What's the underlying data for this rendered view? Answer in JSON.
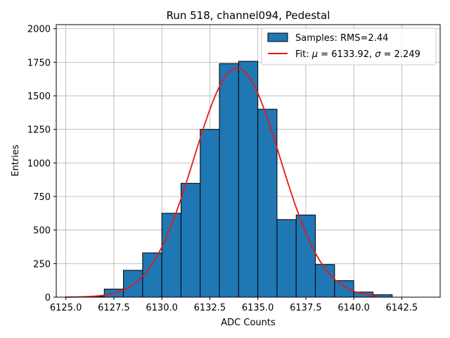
{
  "chart_data": {
    "type": "bar",
    "title": "Run 518, channel094, Pedestal",
    "xlabel": "ADC Counts",
    "ylabel": "Entries",
    "xlim": [
      6124.5,
      6144.5
    ],
    "ylim": [
      0,
      2030
    ],
    "grid": true,
    "legend_position": "top-right",
    "bin_width": 1,
    "bins": [
      {
        "left": 6125,
        "value": 2
      },
      {
        "left": 6126,
        "value": 5
      },
      {
        "left": 6127,
        "value": 60
      },
      {
        "left": 6128,
        "value": 200
      },
      {
        "left": 6129,
        "value": 330
      },
      {
        "left": 6130,
        "value": 625
      },
      {
        "left": 6131,
        "value": 848
      },
      {
        "left": 6132,
        "value": 1250
      },
      {
        "left": 6133,
        "value": 1740
      },
      {
        "left": 6134,
        "value": 1757
      },
      {
        "left": 6135,
        "value": 1400
      },
      {
        "left": 6136,
        "value": 578
      },
      {
        "left": 6137,
        "value": 612
      },
      {
        "left": 6138,
        "value": 243
      },
      {
        "left": 6139,
        "value": 123
      },
      {
        "left": 6140,
        "value": 38
      },
      {
        "left": 6141,
        "value": 18
      }
    ],
    "fit": {
      "mu": 6133.92,
      "sigma": 2.249,
      "amplitude": 1705,
      "x_range": [
        6125,
        6141.2
      ]
    },
    "x_ticks": [
      "6125.0",
      "6127.5",
      "6130.0",
      "6132.5",
      "6135.0",
      "6137.5",
      "6140.0",
      "6142.5"
    ],
    "y_ticks": [
      "0",
      "250",
      "500",
      "750",
      "1000",
      "1250",
      "1500",
      "1750",
      "2000"
    ],
    "legend": {
      "samples_label": "Samples: RMS=2.44",
      "fit_label_prefix": "Fit: ",
      "mu_symbol": "μ",
      "mu_text": " = 6133.92, ",
      "sigma_symbol": "σ",
      "sigma_text": " = 2.249"
    },
    "colors": {
      "bar": "#1f77b4",
      "bar_edge": "#000000",
      "fit": "#e31a1c",
      "grid": "#b0b0b0"
    }
  }
}
